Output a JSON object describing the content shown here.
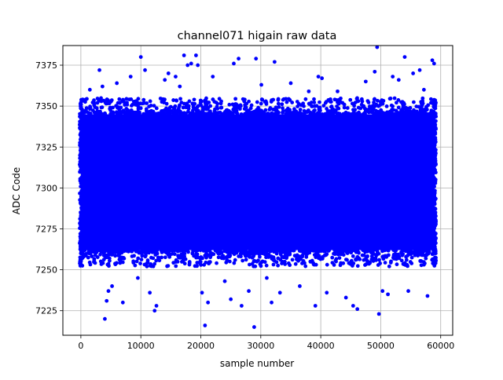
{
  "chart_data": {
    "type": "scatter",
    "title": "channel071 higain raw data",
    "xlabel": "sample number",
    "ylabel": "ADC Code",
    "xlim": [
      -3000,
      62000
    ],
    "ylim": [
      7210,
      7387
    ],
    "x_ticks": [
      {
        "value": 0,
        "label": "0"
      },
      {
        "value": 10000,
        "label": "10000"
      },
      {
        "value": 20000,
        "label": "20000"
      },
      {
        "value": 30000,
        "label": "30000"
      },
      {
        "value": 40000,
        "label": "40000"
      },
      {
        "value": 50000,
        "label": "50000"
      },
      {
        "value": 60000,
        "label": "60000"
      }
    ],
    "y_ticks": [
      {
        "value": 7225,
        "label": "7225"
      },
      {
        "value": 7250,
        "label": "7250"
      },
      {
        "value": 7275,
        "label": "7275"
      },
      {
        "value": 7300,
        "label": "7300"
      },
      {
        "value": 7325,
        "label": "7325"
      },
      {
        "value": 7350,
        "label": "7350"
      },
      {
        "value": 7375,
        "label": "7375"
      }
    ],
    "grid": true,
    "marker_color": "#0000ff",
    "sample_count": 59000,
    "dense_band": {
      "y_low": 7262,
      "y_high": 7345
    },
    "outliers": [
      [
        800,
        7354
      ],
      [
        1500,
        7360
      ],
      [
        2200,
        7352
      ],
      [
        3100,
        7372
      ],
      [
        3600,
        7362
      ],
      [
        4000,
        7220
      ],
      [
        4300,
        7231
      ],
      [
        4600,
        7237
      ],
      [
        5200,
        7240
      ],
      [
        6000,
        7364
      ],
      [
        7000,
        7230
      ],
      [
        8300,
        7368
      ],
      [
        9500,
        7245
      ],
      [
        10000,
        7380
      ],
      [
        10700,
        7372
      ],
      [
        11500,
        7236
      ],
      [
        12300,
        7225
      ],
      [
        12600,
        7228
      ],
      [
        14000,
        7366
      ],
      [
        14600,
        7370
      ],
      [
        15800,
        7368
      ],
      [
        16500,
        7362
      ],
      [
        17200,
        7381
      ],
      [
        17800,
        7375
      ],
      [
        18400,
        7376
      ],
      [
        19200,
        7381
      ],
      [
        19500,
        7375
      ],
      [
        20200,
        7236
      ],
      [
        20700,
        7216
      ],
      [
        21200,
        7230
      ],
      [
        22000,
        7368
      ],
      [
        24000,
        7243
      ],
      [
        25000,
        7232
      ],
      [
        25500,
        7376
      ],
      [
        26300,
        7379
      ],
      [
        26800,
        7228
      ],
      [
        28000,
        7237
      ],
      [
        28900,
        7215
      ],
      [
        29200,
        7379
      ],
      [
        30100,
        7363
      ],
      [
        31000,
        7245
      ],
      [
        31800,
        7230
      ],
      [
        32300,
        7377
      ],
      [
        33200,
        7236
      ],
      [
        35000,
        7364
      ],
      [
        36500,
        7240
      ],
      [
        38000,
        7359
      ],
      [
        39100,
        7228
      ],
      [
        39600,
        7368
      ],
      [
        40200,
        7367
      ],
      [
        41000,
        7236
      ],
      [
        42800,
        7359
      ],
      [
        44200,
        7233
      ],
      [
        45400,
        7228
      ],
      [
        46100,
        7226
      ],
      [
        47500,
        7365
      ],
      [
        49000,
        7371
      ],
      [
        49400,
        7386
      ],
      [
        49700,
        7223
      ],
      [
        50300,
        7237
      ],
      [
        51200,
        7235
      ],
      [
        52000,
        7368
      ],
      [
        53000,
        7366
      ],
      [
        54000,
        7380
      ],
      [
        54600,
        7237
      ],
      [
        55400,
        7370
      ],
      [
        56500,
        7372
      ],
      [
        57200,
        7360
      ],
      [
        57800,
        7234
      ],
      [
        58600,
        7378
      ],
      [
        58900,
        7376
      ]
    ]
  }
}
